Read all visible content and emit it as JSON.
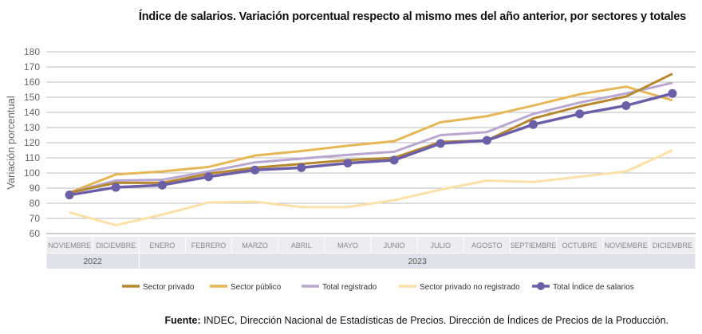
{
  "chart_data": {
    "type": "line",
    "title": "Índice de salarios. Variación porcentual respecto al mismo mes del año anterior, por sectores y totales",
    "ylabel": "Variación porcentual",
    "xlabel": "",
    "ylim": [
      60,
      180
    ],
    "yticks": [
      60,
      70,
      80,
      90,
      100,
      110,
      120,
      130,
      140,
      150,
      160,
      170,
      180
    ],
    "grid": true,
    "legend": "bottom",
    "categories": [
      "NOVIEMBRE",
      "DICIEMBRE",
      "ENERO",
      "FEBRERO",
      "MARZO",
      "ABRIL",
      "MAYO",
      "JUNIO",
      "JULIO",
      "AGOSTO",
      "SEPTIEMBRE",
      "OCTUBRE",
      "NOVIEMBRE",
      "DICIEMBRE"
    ],
    "years": [
      {
        "label": "2022",
        "span": 2
      },
      {
        "label": "2023",
        "span": 12
      }
    ],
    "series": [
      {
        "name": "Sector privado",
        "color": "#b5882d",
        "values": [
          87,
          93.5,
          93.5,
          99.5,
          103.5,
          106,
          108.5,
          110,
          120.5,
          121.5,
          136,
          144,
          150.5,
          165.5
        ]
      },
      {
        "name": "Sector público",
        "color": "#e6b757",
        "values": [
          87,
          99,
          101,
          104,
          111.5,
          114.5,
          118,
          121,
          133.5,
          137.5,
          144.5,
          152,
          157,
          148
        ]
      },
      {
        "name": "Total registrado",
        "color": "#b9a6d1",
        "values": [
          87,
          95,
          95.5,
          101,
          107,
          109.5,
          112,
          114,
          125,
          127,
          139,
          146.5,
          152.5,
          159.5
        ]
      },
      {
        "name": "Sector privado no registrado",
        "color": "#fde0a8",
        "values": [
          74,
          65.5,
          72.5,
          80.5,
          81,
          77.5,
          77.5,
          82,
          89,
          95,
          94,
          97.5,
          101,
          115
        ]
      },
      {
        "name": "Total Índice de salarios",
        "color": "#6d5ea8",
        "markers": true,
        "values": [
          85.5,
          90.5,
          92,
          97.5,
          102,
          103.5,
          106.5,
          108.5,
          119.5,
          121.5,
          132,
          139,
          144.5,
          152.5
        ]
      }
    ]
  },
  "source": {
    "label": "Fuente:",
    "text": " INDEC, Dirección Nacional de Estadísticas de Precios. Dirección de Índices de Precios de la Producción."
  }
}
